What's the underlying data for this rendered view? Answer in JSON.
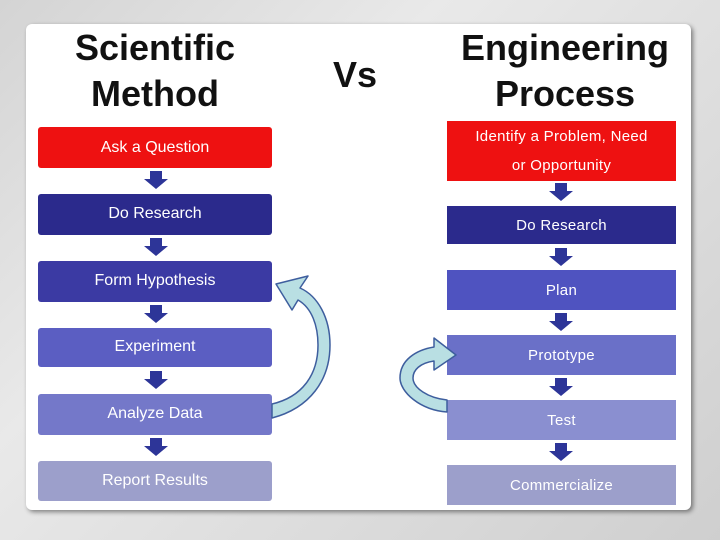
{
  "left": {
    "title_line1": "Scientific",
    "title_line2": "Method",
    "steps": [
      "Ask a Question",
      "Do Research",
      "Form Hypothesis",
      "Experiment",
      "Analyze Data",
      "Report Results"
    ]
  },
  "vs_label": "Vs",
  "right": {
    "title_line1": "Engineering",
    "title_line2": "Process",
    "step1_line1": "Identify a Problem, Need",
    "step1_line2": "or Opportunity",
    "steps": [
      "Do Research",
      "Plan",
      "Prototype",
      "Test",
      "Commercialize"
    ]
  },
  "colors": {
    "red": "#ee1111",
    "navy": "#2b2a8c",
    "indigo": "#3b3aa3",
    "blue": "#4f53c0",
    "periwinkle": "#6a70c8",
    "lavender": "#8a8fd0",
    "grey_lavender": "#9c9fcb",
    "arrow": "#2d3598",
    "cycle_fill": "#b9dfe3",
    "cycle_stroke": "#3e5e9e"
  }
}
